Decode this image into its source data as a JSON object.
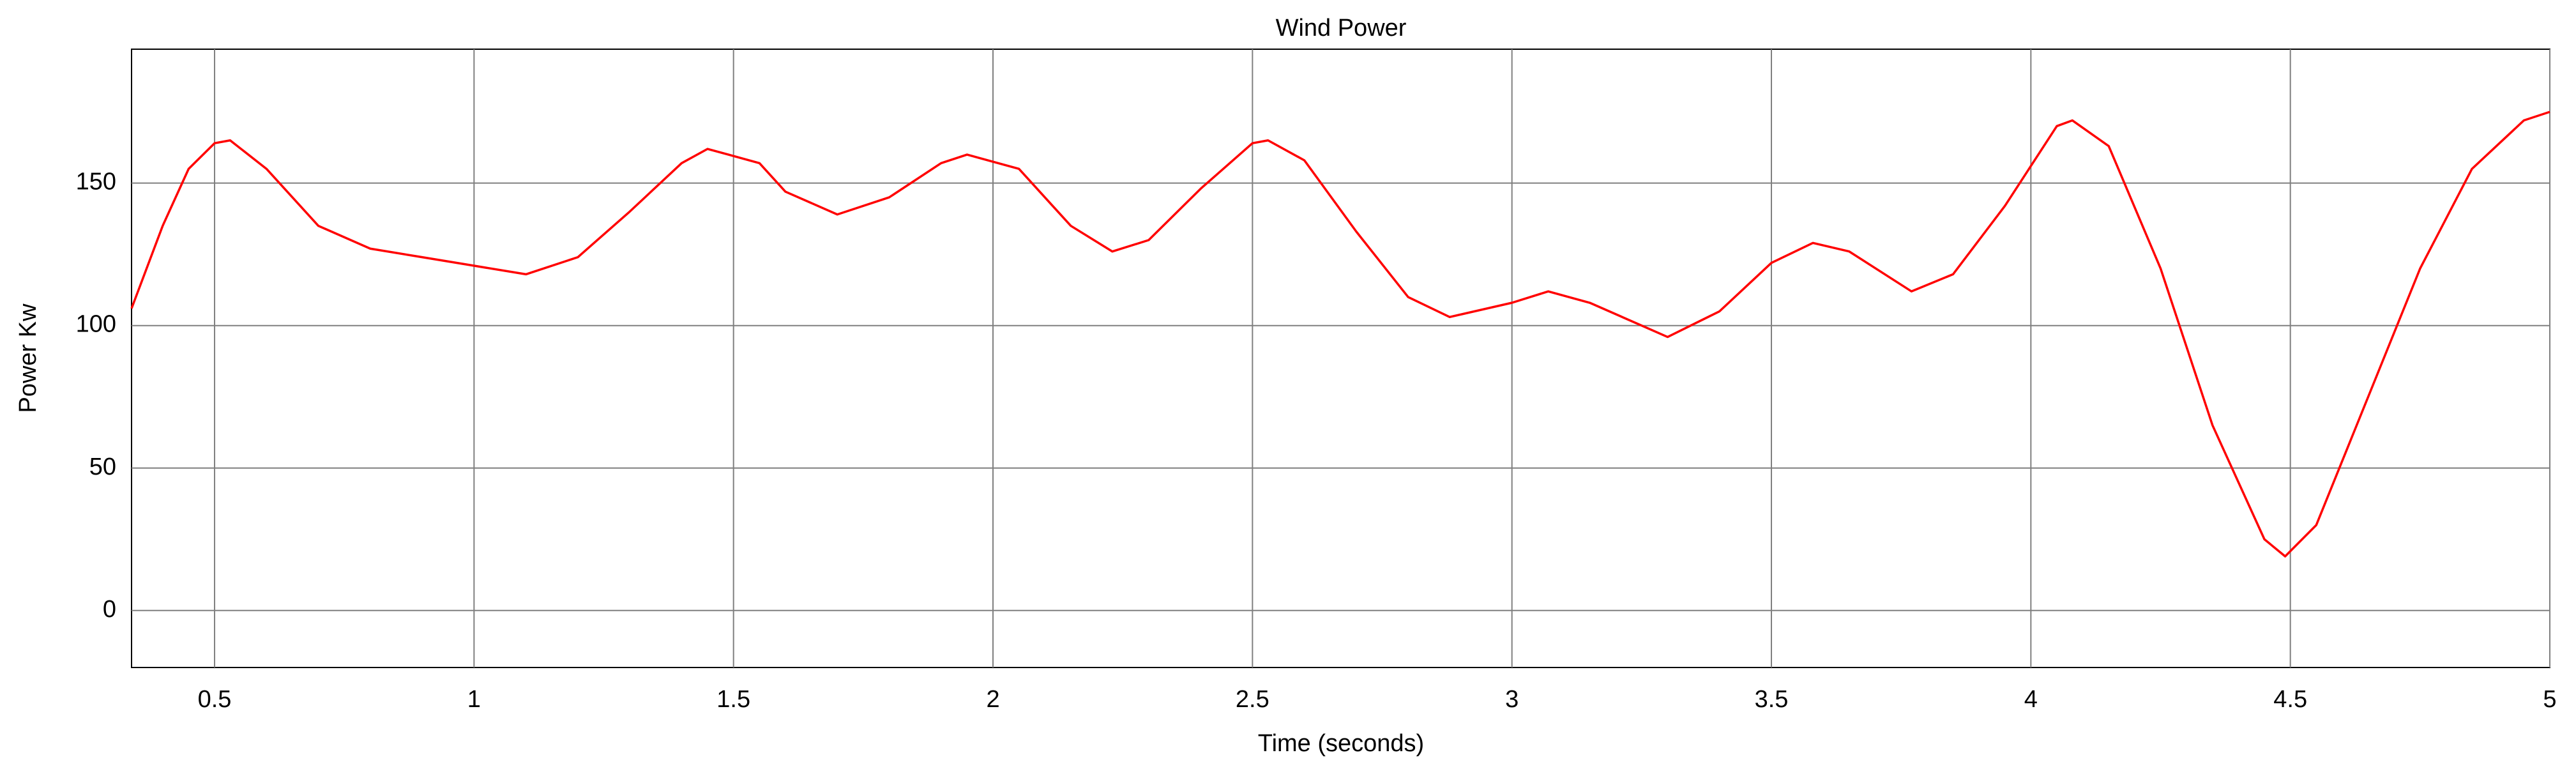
{
  "chart_data": {
    "type": "line",
    "title": "Wind Power",
    "x_label": "Time (seconds)",
    "y_label": "Power Kw",
    "x": [
      0.34,
      0.4,
      0.45,
      0.5,
      0.53,
      0.6,
      0.7,
      0.8,
      0.9,
      1.0,
      1.1,
      1.2,
      1.3,
      1.4,
      1.45,
      1.55,
      1.6,
      1.7,
      1.8,
      1.9,
      1.95,
      2.05,
      2.15,
      2.23,
      2.3,
      2.4,
      2.5,
      2.53,
      2.6,
      2.7,
      2.8,
      2.88,
      3.0,
      3.07,
      3.15,
      3.3,
      3.4,
      3.5,
      3.58,
      3.65,
      3.77,
      3.85,
      3.95,
      4.05,
      4.08,
      4.15,
      4.25,
      4.35,
      4.45,
      4.49,
      4.55,
      4.65,
      4.75,
      4.85,
      4.95,
      5.0
    ],
    "series": [
      {
        "color": "#ff0000",
        "values": [
          106,
          135,
          155,
          164,
          165,
          155,
          135,
          127,
          124,
          121,
          118,
          124,
          140,
          157,
          162,
          157,
          147,
          139,
          145,
          157,
          160,
          155,
          135,
          126,
          130,
          148,
          164,
          165,
          158,
          133,
          110,
          103,
          108,
          112,
          108,
          96,
          105,
          122,
          129,
          126,
          112,
          118,
          142,
          170,
          172,
          163,
          120,
          65,
          25,
          19,
          30,
          75,
          120,
          155,
          172,
          175
        ]
      }
    ],
    "xlim": [
      0.34,
      5
    ],
    "ylim": [
      -20,
      197
    ],
    "xticks": [
      0.5,
      1,
      1.5,
      2,
      2.5,
      3,
      3.5,
      4,
      4.5,
      5
    ],
    "yticks": [
      0,
      50,
      100,
      150
    ],
    "grid": true
  }
}
